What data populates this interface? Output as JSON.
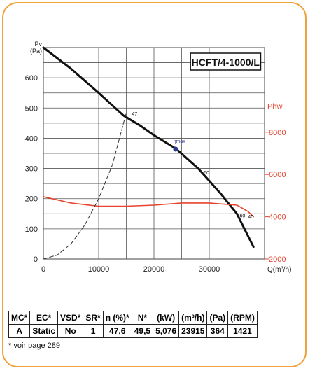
{
  "chart_data": {
    "type": "line",
    "title": "HCFT/4-1000/L",
    "ylabel": "Pv\n(Pa)",
    "xlabel": "Q(m³/h)",
    "right_ylabel": "Phw",
    "xlim": [
      0,
      40000
    ],
    "ylim": [
      0,
      700
    ],
    "right_ylim": [
      2000,
      12000
    ],
    "x_ticks": [
      "0",
      "10000",
      "20000",
      "30000"
    ],
    "y_ticks": [
      "0",
      "100",
      "200",
      "300",
      "400",
      "500",
      "600"
    ],
    "right_ticks": [
      "2000",
      "4000",
      "6000",
      "8000"
    ],
    "grid": true,
    "series": [
      {
        "kind": "pressure",
        "color": "#111111",
        "x": [
          0,
          5000,
          10000,
          14500,
          17500,
          20000,
          24000,
          28000,
          32000,
          35000,
          38000
        ],
        "y": [
          700,
          630,
          550,
          475,
          442,
          410,
          365,
          300,
          218,
          150,
          40
        ]
      },
      {
        "kind": "power",
        "color": "#e8432e",
        "x": [
          0,
          5000,
          10000,
          15000,
          20000,
          25000,
          30000,
          35000,
          37000,
          38000
        ],
        "y": [
          4950,
          4650,
          4500,
          4500,
          4550,
          4650,
          4650,
          4550,
          4250,
          4000
        ]
      },
      {
        "kind": "system-curve",
        "color": "#333333",
        "dashed": true,
        "x": [
          0,
          2500,
          5000,
          7500,
          10000,
          12500,
          15000
        ],
        "y": [
          0,
          13,
          50,
          113,
          200,
          313,
          485
        ]
      }
    ],
    "annotations": [
      {
        "text": "47",
        "x": 16000,
        "y": 475
      },
      {
        "text": "ηmax",
        "x": 23500,
        "y": 385
      },
      {
        "text": "60",
        "x": 29000,
        "y": 280
      },
      {
        "text": "60",
        "x": 35500,
        "y": 138
      },
      {
        "text": "40",
        "x": 37000,
        "y": 135
      }
    ],
    "marker": {
      "x": 23915,
      "y": 364
    }
  },
  "table": {
    "headers": [
      "MC*",
      "EC*",
      "VSD*",
      "SR*",
      "n (%)*",
      "N*",
      "(kW)",
      "(m³/h)",
      "(Pa)",
      "(RPM)"
    ],
    "rows": [
      [
        "A",
        "Static",
        "No",
        "1",
        "47,6",
        "49,5",
        "5,076",
        "23915",
        "364",
        "1421"
      ]
    ]
  },
  "footnote": "* voir page 289",
  "colors": {
    "border": "#f0a23a",
    "power_curve": "#e8432e",
    "pressure_curve": "#111111",
    "right_axis": "#e8432e"
  }
}
